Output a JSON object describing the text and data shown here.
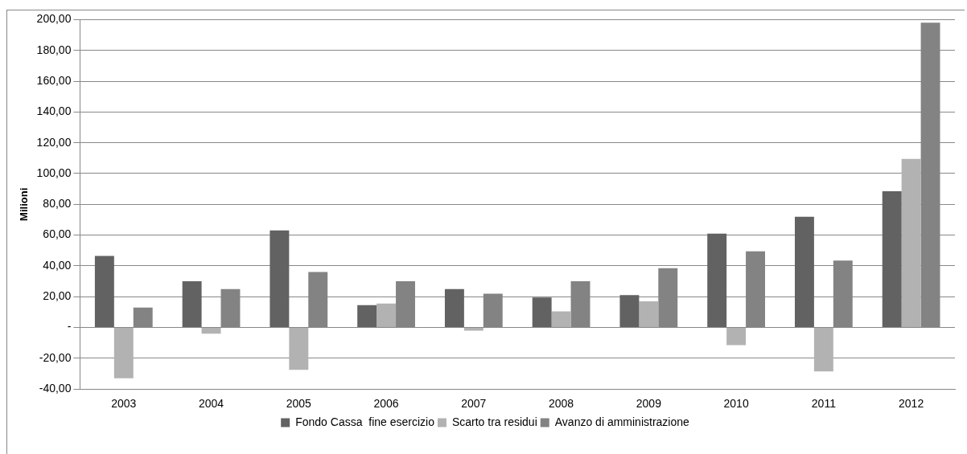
{
  "chart_data": {
    "type": "bar",
    "ylabel": "Milioni",
    "categories": [
      "2003",
      "2004",
      "2005",
      "2006",
      "2007",
      "2008",
      "2009",
      "2010",
      "2011",
      "2012"
    ],
    "series": [
      {
        "name": "Fondo Cassa  fine esercizio",
        "color": "#626262",
        "values": [
          46.5,
          30,
          63,
          14.5,
          25,
          19.5,
          21,
          61,
          72,
          88.5
        ]
      },
      {
        "name": "Scarto tra residui",
        "color": "#b2b2b2",
        "values": [
          -33,
          -4,
          -27.5,
          15.5,
          -2,
          10.5,
          17,
          -11.5,
          -28.5,
          109.5
        ]
      },
      {
        "name": "Avanzo di amministrazione",
        "color": "#838383",
        "values": [
          13,
          25,
          36,
          30,
          22,
          30,
          38.5,
          49.5,
          43.5,
          198
        ]
      }
    ],
    "ylim": [
      -40,
      200
    ],
    "yticks": [
      {
        "value": -40,
        "label": "-40,00"
      },
      {
        "value": -20,
        "label": "-20,00"
      },
      {
        "value": 0,
        "label": "-"
      },
      {
        "value": 20,
        "label": "20,00"
      },
      {
        "value": 40,
        "label": "40,00"
      },
      {
        "value": 60,
        "label": "60,00"
      },
      {
        "value": 80,
        "label": "80,00"
      },
      {
        "value": 100,
        "label": "100,00"
      },
      {
        "value": 120,
        "label": "120,00"
      },
      {
        "value": 140,
        "label": "140,00"
      },
      {
        "value": 160,
        "label": "160,00"
      },
      {
        "value": 180,
        "label": "180,00"
      },
      {
        "value": 200,
        "label": "200,00"
      }
    ],
    "grid": "y",
    "legend": "bottom"
  }
}
